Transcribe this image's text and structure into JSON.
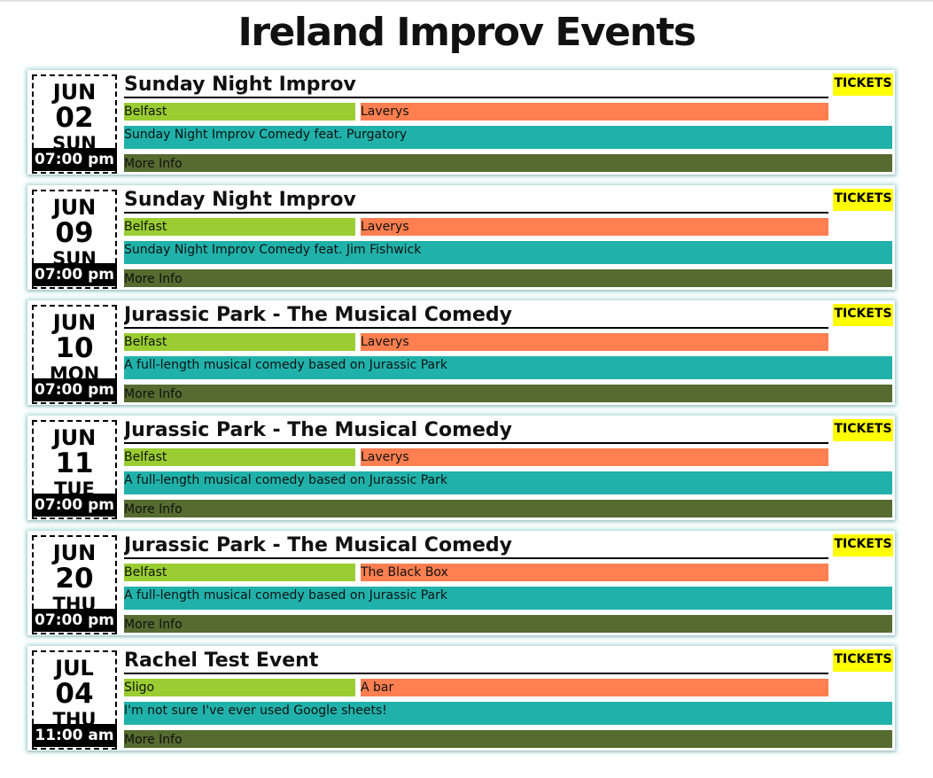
{
  "page": {
    "title": "Ireland Improv Events"
  },
  "events": [
    {
      "month": "JUN",
      "day": "02",
      "weekday": "SUN",
      "time": "07:00 pm",
      "title": "Sunday Night Improv",
      "tickets": "TICKETS",
      "city": "Belfast",
      "venue": "Laverys",
      "description": "Sunday Night Improv Comedy feat. Purgatory",
      "more_info": "More Info"
    },
    {
      "month": "JUN",
      "day": "09",
      "weekday": "SUN",
      "time": "07:00 pm",
      "title": "Sunday Night Improv",
      "tickets": "TICKETS",
      "city": "Belfast",
      "venue": "Laverys",
      "description": "Sunday Night Improv Comedy feat. Jim Fishwick",
      "more_info": "More Info"
    },
    {
      "month": "JUN",
      "day": "10",
      "weekday": "MON",
      "time": "07:00 pm",
      "title": "Jurassic Park - The Musical Comedy",
      "tickets": "TICKETS",
      "city": "Belfast",
      "venue": "Laverys",
      "description": "A full-length musical comedy based on Jurassic Park",
      "more_info": "More Info"
    },
    {
      "month": "JUN",
      "day": "11",
      "weekday": "TUE",
      "time": "07:00 pm",
      "title": "Jurassic Park - The Musical Comedy",
      "tickets": "TICKETS",
      "city": "Belfast",
      "venue": "Laverys",
      "description": "A full-length musical comedy based on Jurassic Park",
      "more_info": "More Info"
    },
    {
      "month": "JUN",
      "day": "20",
      "weekday": "THU",
      "time": "07:00 pm",
      "title": "Jurassic Park - The Musical Comedy",
      "tickets": "TICKETS",
      "city": "Belfast",
      "venue": "The Black Box",
      "description": "A full-length musical comedy based on Jurassic Park",
      "more_info": "More Info"
    },
    {
      "month": "JUL",
      "day": "04",
      "weekday": "THU",
      "time": "11:00 am",
      "title": "Rachel Test Event",
      "tickets": "TICKETS",
      "city": "Sligo",
      "venue": "A bar",
      "description": "I'm not sure I've ever used Google sheets!",
      "more_info": "More Info"
    }
  ],
  "colors": {
    "city": "#9acd32",
    "venue": "#ff7f50",
    "description": "#20b2aa",
    "more_info": "#556b2f",
    "tickets": "#ffff00"
  }
}
